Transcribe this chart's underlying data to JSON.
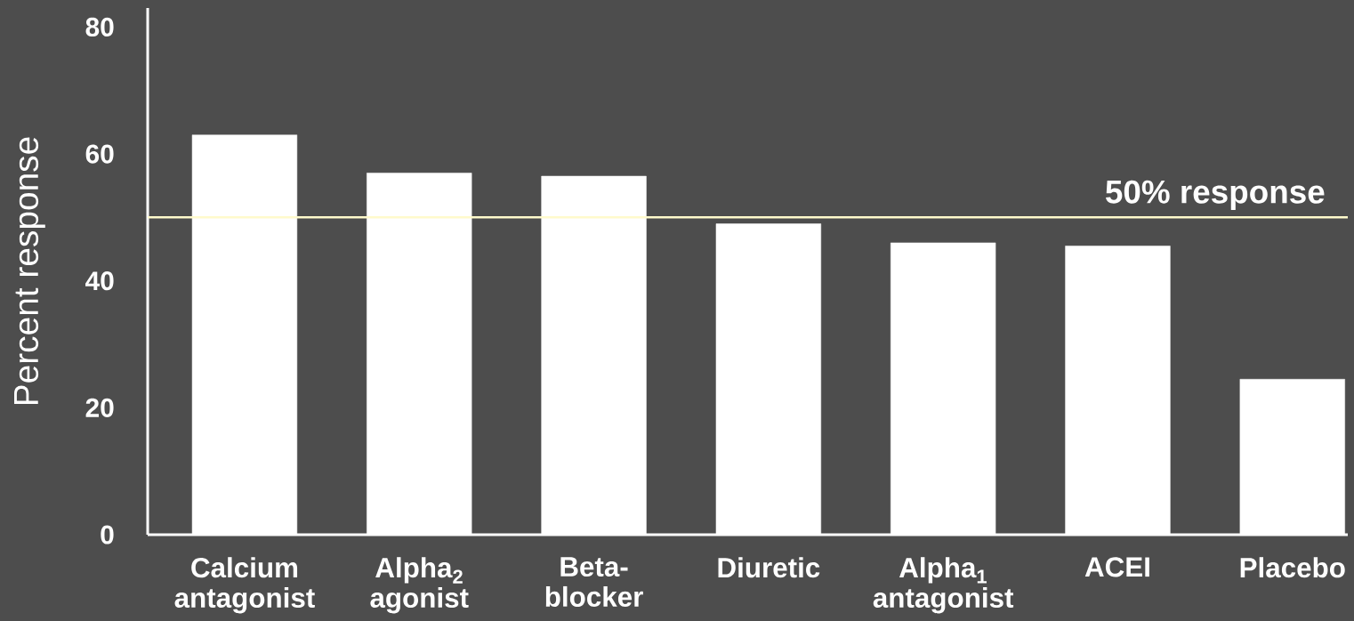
{
  "chart_data": {
    "type": "bar",
    "ylabel": "Percent response",
    "categories": [
      "Calcium antagonist",
      "Alpha$_{2}$ agonist",
      "Beta-blocker",
      "Diuretic",
      "Alpha$_{1}$ antagonist",
      "ACEI",
      "Placebo"
    ],
    "values": [
      63,
      57,
      56.5,
      49,
      46,
      45.5,
      24.5
    ],
    "color": "#ffffff",
    "ylim": [
      0,
      83
    ],
    "yticks": [
      0,
      20,
      40,
      60,
      80
    ],
    "ref_lines": [
      {
        "axis": "y",
        "value": 50,
        "label": "50% response",
        "color": "#fffacc"
      }
    ]
  }
}
